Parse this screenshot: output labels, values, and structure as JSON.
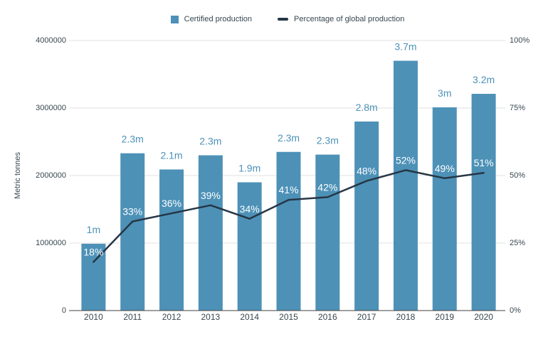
{
  "legend": {
    "bar_series_label": "Certified production",
    "line_series_label": "Percentage of global production"
  },
  "y_axis_left": {
    "title": "Metric tonnes",
    "ticks": [
      "0",
      "1000000",
      "2000000",
      "3000000",
      "4000000"
    ]
  },
  "y_axis_right": {
    "ticks": [
      "0%",
      "25%",
      "50%",
      "75%",
      "100%"
    ]
  },
  "colors": {
    "background": "#ffffff",
    "bar": "#4d91b7",
    "bar_label": "#4d91b7",
    "line": "#263645",
    "pct_label": "#ffffff",
    "axis_text": "#37474f",
    "gridline": "#e1e1e1",
    "baseline": "#424242"
  },
  "chart_data": {
    "type": "bar+line",
    "categories": [
      "2010",
      "2011",
      "2012",
      "2013",
      "2014",
      "2015",
      "2016",
      "2017",
      "2018",
      "2019",
      "2020"
    ],
    "series": [
      {
        "name": "Certified production",
        "type": "bar",
        "axis": "left",
        "unit": "metric tonnes",
        "values": [
          990000,
          2330000,
          2090000,
          2300000,
          1900000,
          2350000,
          2310000,
          2800000,
          3700000,
          3010000,
          3210000
        ],
        "labels": [
          "1m",
          "2.3m",
          "2.1m",
          "2.3m",
          "1.9m",
          "2.3m",
          "2.3m",
          "2.8m",
          "3.7m",
          "3m",
          "3.2m"
        ]
      },
      {
        "name": "Percentage of global production",
        "type": "line",
        "axis": "right",
        "unit": "%",
        "values": [
          18,
          33,
          36,
          39,
          34,
          41,
          42,
          48,
          52,
          49,
          51
        ],
        "labels": [
          "18%",
          "33%",
          "36%",
          "39%",
          "34%",
          "41%",
          "42%",
          "48%",
          "52%",
          "49%",
          "51%"
        ]
      }
    ],
    "xlabel": "",
    "ylabel": "Metric tonnes",
    "ylim_left": [
      0,
      4000000
    ],
    "ylim_right": [
      0,
      100
    ],
    "grid": true,
    "legend_position": "top-center"
  }
}
